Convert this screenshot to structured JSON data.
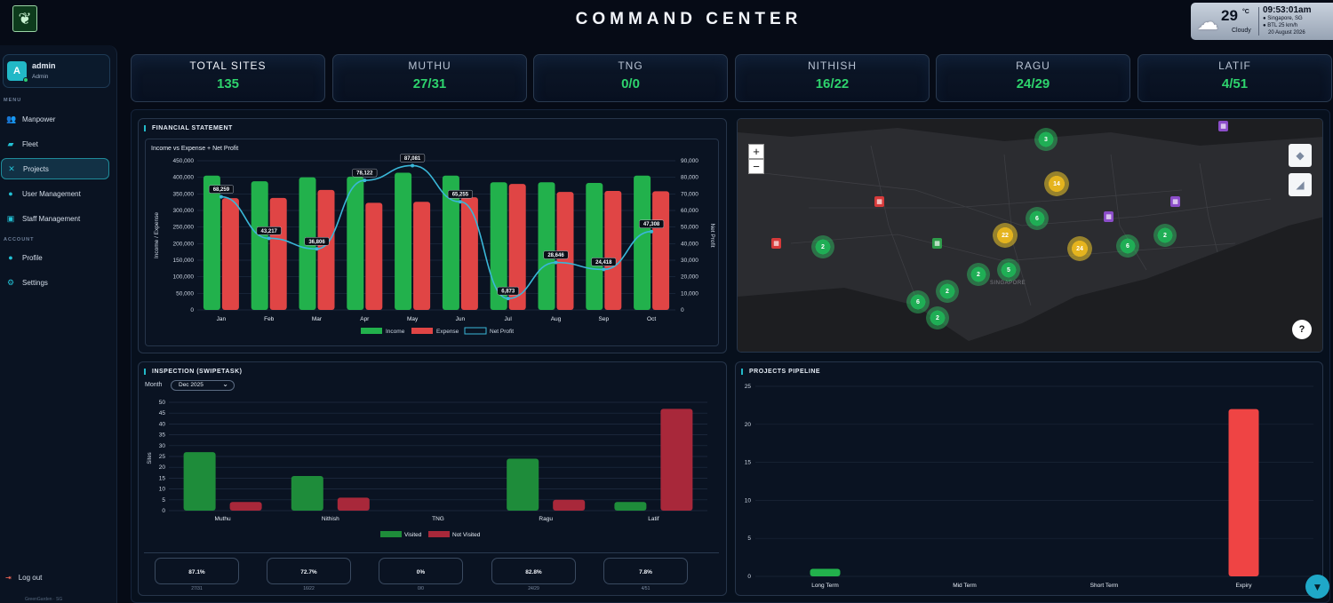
{
  "header": {
    "title": "COMMAND CENTER",
    "weather": {
      "temp": "29",
      "unit": "°C",
      "condition": "Cloudy",
      "time": "09:53:01am",
      "location": "Singapore, SG",
      "wind": "BTL",
      "wind_val": "25 km/h",
      "date": "20 August 2026"
    }
  },
  "user": {
    "initial": "A",
    "name": "admin",
    "role": "Admin"
  },
  "sidebar": {
    "menu_label": "MENU",
    "account_label": "ACCOUNT",
    "items": [
      {
        "label": "Manpower",
        "icon": "users-icon"
      },
      {
        "label": "Fleet",
        "icon": "truck-icon"
      },
      {
        "label": "Projects",
        "icon": "wrench-icon"
      },
      {
        "label": "User Management",
        "icon": "user-icon"
      },
      {
        "label": "Staff Management",
        "icon": "id-card-icon"
      }
    ],
    "account_items": [
      {
        "label": "Profile",
        "icon": "profile-icon"
      },
      {
        "label": "Settings",
        "icon": "gear-icon"
      }
    ],
    "logout": "Log out",
    "footer": "GreenGarden · SG"
  },
  "stats": [
    {
      "label": "TOTAL SITES",
      "value": "135"
    },
    {
      "label": "MUTHU",
      "value": "27/31"
    },
    {
      "label": "TNG",
      "value": "0/0"
    },
    {
      "label": "NITHISH",
      "value": "16/22"
    },
    {
      "label": "RAGU",
      "value": "24/29"
    },
    {
      "label": "LATIF",
      "value": "4/51"
    }
  ],
  "financial": {
    "panel_title": "FINANCIAL STATEMENT",
    "chart_title": "Income vs Expense + Net Profit"
  },
  "inspection": {
    "panel_title": "INSPECTION (SWIPETASK)",
    "month_label": "Month",
    "month_value": "Dec 2025",
    "summary": [
      {
        "pct": "87.1%",
        "ratio": "27/31"
      },
      {
        "pct": "72.7%",
        "ratio": "16/22"
      },
      {
        "pct": "0%",
        "ratio": "0/0"
      },
      {
        "pct": "82.8%",
        "ratio": "24/29"
      },
      {
        "pct": "7.8%",
        "ratio": "4/51"
      }
    ]
  },
  "pipeline": {
    "panel_title": "PROJECTS PIPELINE"
  },
  "map": {
    "zoom_in": "+",
    "zoom_out": "−",
    "help": "?",
    "labels": [
      "SINGAPORE"
    ],
    "clusters": [
      {
        "n": "3",
        "c": "g"
      },
      {
        "n": "14",
        "c": "y"
      },
      {
        "n": "6",
        "c": "g"
      },
      {
        "n": "22",
        "c": "y"
      },
      {
        "n": "24",
        "c": "y"
      },
      {
        "n": "6",
        "c": "g"
      },
      {
        "n": "2",
        "c": "g"
      },
      {
        "n": "2",
        "c": "g"
      },
      {
        "n": "2",
        "c": "g"
      },
      {
        "n": "5",
        "c": "g"
      },
      {
        "n": "2",
        "c": "g"
      },
      {
        "n": "6",
        "c": "g"
      },
      {
        "n": "2",
        "c": "g"
      }
    ]
  },
  "chart_data": [
    {
      "type": "bar",
      "title": "Income vs Expense + Net Profit",
      "categories": [
        "Jan",
        "Feb",
        "Mar",
        "Apr",
        "May",
        "Jun",
        "Jul",
        "Aug",
        "Sep",
        "Oct"
      ],
      "ylabel": "Income / Expense",
      "y2label": "Net Profit",
      "ylim": [
        0,
        450000
      ],
      "y2lim": [
        0,
        90000
      ],
      "yticks": [
        "0",
        "50,000",
        "100,000",
        "150,000",
        "200,000",
        "250,000",
        "300,000",
        "350,000",
        "400,000",
        "450,000"
      ],
      "y2ticks": [
        "0",
        "10,000",
        "20,000",
        "30,000",
        "40,000",
        "50,000",
        "60,000",
        "70,000",
        "80,000",
        "90,000"
      ],
      "series": [
        {
          "name": "Income",
          "color": "#22b14c",
          "values": [
            405000,
            388000,
            400000,
            402000,
            414000,
            405000,
            385000,
            385000,
            383000,
            405000
          ]
        },
        {
          "name": "Expense",
          "color": "#e04545",
          "values": [
            337000,
            338000,
            362000,
            323000,
            326000,
            340000,
            380000,
            356000,
            359000,
            358000
          ]
        },
        {
          "name": "Net Profit",
          "color": "#3ab7d8",
          "type": "line",
          "axis": "right",
          "values": [
            68259,
            43217,
            36806,
            78122,
            87081,
            65255,
            6873,
            28646,
            24418,
            47308
          ],
          "labels": [
            "68,259",
            "43,217",
            "36,806",
            "78,122",
            "87,081",
            "65,255",
            "6,873",
            "28,646",
            "24,418",
            "47,308"
          ]
        }
      ],
      "legend": "bottom"
    },
    {
      "type": "bar",
      "categories": [
        "Muthu",
        "Nithish",
        "TNG",
        "Ragu",
        "Latif"
      ],
      "ylabel": "Sites",
      "ylim": [
        0,
        50
      ],
      "yticks": [
        "0",
        "5",
        "10",
        "15",
        "20",
        "25",
        "30",
        "35",
        "40",
        "45",
        "50"
      ],
      "series": [
        {
          "name": "Visited",
          "color": "#1e8c3a",
          "values": [
            27,
            16,
            0,
            24,
            4
          ]
        },
        {
          "name": "Not Visited",
          "color": "#a8283a",
          "values": [
            4,
            6,
            0,
            5,
            47
          ]
        }
      ],
      "legend": "bottom"
    },
    {
      "type": "bar",
      "categories": [
        "Long Term",
        "Mid Term",
        "Short Term",
        "Expiry"
      ],
      "ylim": [
        0,
        25
      ],
      "yticks": [
        "0",
        "5",
        "10",
        "15",
        "20",
        "25"
      ],
      "series": [
        {
          "values": [
            1,
            0,
            0,
            22
          ],
          "colors": [
            "#22b14c",
            "#22b14c",
            "#22b14c",
            "#ef4444"
          ]
        }
      ]
    }
  ]
}
